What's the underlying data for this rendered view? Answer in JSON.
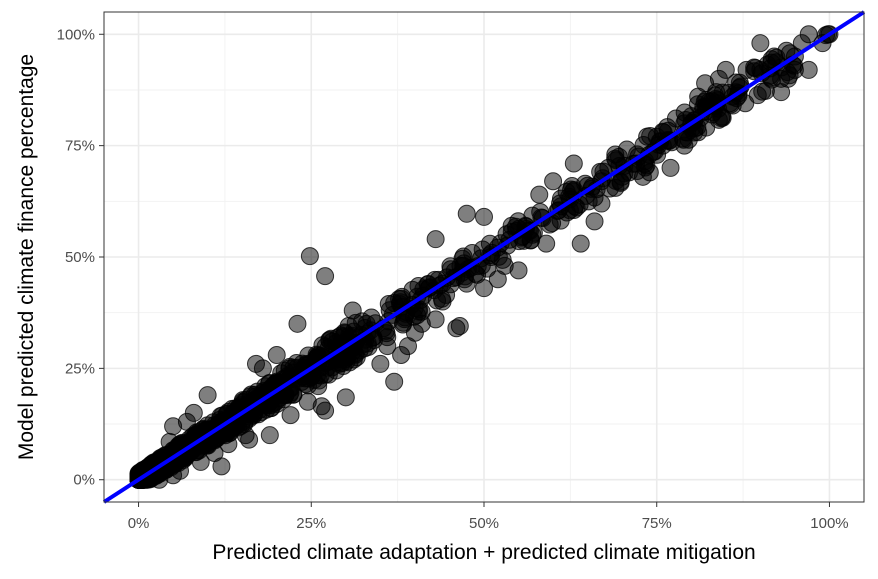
{
  "chart_data": {
    "type": "scatter",
    "title": "",
    "xlabel": "Predicted climate adaptation + predicted climate mitigation",
    "ylabel": "Model predicted climate finance percentage",
    "xlim": [
      -0.05,
      1.05
    ],
    "ylim": [
      -0.05,
      1.05
    ],
    "x_ticks": [
      0,
      0.25,
      0.5,
      0.75,
      1.0
    ],
    "x_tick_labels": [
      "0%",
      "25%",
      "50%",
      "75%",
      "100%"
    ],
    "y_ticks": [
      0,
      0.25,
      0.5,
      0.75,
      1.0
    ],
    "y_tick_labels": [
      "0%",
      "25%",
      "50%",
      "75%",
      "100%"
    ],
    "grid": true,
    "reference_line": {
      "slope": 1,
      "intercept": 0,
      "color": "#0000ff"
    },
    "point_color": "#000000",
    "point_opacity": 0.5,
    "points": [
      [
        0.248,
        0.502
      ],
      [
        0.27,
        0.457
      ],
      [
        0.43,
        0.54
      ],
      [
        0.475,
        0.597
      ],
      [
        0.5,
        0.59
      ],
      [
        0.465,
        0.345
      ],
      [
        0.46,
        0.34
      ],
      [
        0.22,
        0.145
      ],
      [
        0.245,
        0.175
      ],
      [
        0.265,
        0.165
      ],
      [
        0.27,
        0.155
      ],
      [
        0.3,
        0.185
      ],
      [
        0.36,
        0.3
      ],
      [
        0.36,
        0.32
      ],
      [
        0.4,
        0.33
      ],
      [
        0.43,
        0.36
      ],
      [
        0.44,
        0.4
      ],
      [
        0.5,
        0.43
      ],
      [
        0.52,
        0.45
      ],
      [
        0.55,
        0.47
      ],
      [
        0.54,
        0.57
      ],
      [
        0.58,
        0.64
      ],
      [
        0.6,
        0.67
      ],
      [
        0.63,
        0.71
      ],
      [
        0.59,
        0.53
      ],
      [
        0.64,
        0.53
      ],
      [
        0.66,
        0.58
      ],
      [
        0.67,
        0.62
      ],
      [
        0.69,
        0.73
      ],
      [
        0.7,
        0.68
      ],
      [
        0.71,
        0.69
      ],
      [
        0.75,
        0.77
      ],
      [
        0.76,
        0.78
      ],
      [
        0.79,
        0.8
      ],
      [
        0.8,
        0.8
      ],
      [
        0.81,
        0.86
      ],
      [
        0.82,
        0.89
      ],
      [
        0.83,
        0.82
      ],
      [
        0.84,
        0.9
      ],
      [
        0.85,
        0.92
      ],
      [
        0.86,
        0.84
      ],
      [
        0.87,
        0.88
      ],
      [
        0.9,
        0.92
      ],
      [
        0.92,
        0.95
      ],
      [
        0.93,
        0.9
      ],
      [
        0.95,
        0.92
      ],
      [
        0.96,
        0.98
      ],
      [
        0.97,
        1.0
      ],
      [
        0.99,
        0.98
      ],
      [
        0.73,
        0.68
      ],
      [
        0.74,
        0.69
      ],
      [
        0.77,
        0.7
      ],
      [
        0.79,
        0.75
      ],
      [
        0.81,
        0.78
      ],
      [
        0.9,
        0.98
      ],
      [
        0.93,
        0.87
      ],
      [
        0.94,
        0.9
      ],
      [
        0.95,
        0.95
      ],
      [
        0.97,
        0.92
      ],
      [
        0.83,
        0.85
      ],
      [
        0.86,
        0.86
      ],
      [
        0.88,
        0.92
      ],
      [
        0.1,
        0.19
      ],
      [
        0.12,
        0.03
      ],
      [
        0.155,
        0.1
      ],
      [
        0.16,
        0.09
      ],
      [
        0.19,
        0.1
      ],
      [
        0.2,
        0.17
      ],
      [
        0.17,
        0.26
      ],
      [
        0.18,
        0.25
      ],
      [
        0.2,
        0.28
      ],
      [
        0.23,
        0.35
      ],
      [
        0.28,
        0.31
      ],
      [
        0.31,
        0.38
      ],
      [
        0.33,
        0.35
      ],
      [
        0.35,
        0.26
      ],
      [
        0.37,
        0.22
      ],
      [
        0.38,
        0.28
      ],
      [
        0.39,
        0.3
      ],
      [
        0.41,
        0.35
      ],
      [
        0.42,
        0.43
      ],
      [
        0.44,
        0.44
      ],
      [
        0.47,
        0.48
      ],
      [
        0.49,
        0.46
      ],
      [
        0.51,
        0.5
      ],
      [
        0.53,
        0.48
      ],
      [
        0.56,
        0.57
      ],
      [
        0.57,
        0.55
      ],
      [
        0.61,
        0.62
      ],
      [
        0.62,
        0.6
      ],
      [
        0.65,
        0.66
      ],
      [
        0.67,
        0.67
      ],
      [
        0.68,
        0.7
      ],
      [
        0.72,
        0.71
      ],
      [
        0.26,
        0.21
      ],
      [
        0.29,
        0.26
      ],
      [
        0.32,
        0.29
      ],
      [
        0.34,
        0.32
      ],
      [
        0.045,
        0.085
      ],
      [
        0.05,
        0.12
      ],
      [
        0.07,
        0.13
      ],
      [
        0.08,
        0.15
      ],
      [
        0.09,
        0.04
      ],
      [
        0.11,
        0.06
      ],
      [
        0.13,
        0.08
      ],
      [
        0.14,
        0.16
      ],
      [
        0.15,
        0.13
      ],
      [
        0.03,
        0.0
      ],
      [
        0.05,
        0.01
      ],
      [
        0.06,
        0.02
      ]
    ],
    "points_at_100": [
      [
        1.0,
        1.0
      ],
      [
        0.995,
        0.998
      ],
      [
        0.998,
        1.0
      ]
    ]
  }
}
